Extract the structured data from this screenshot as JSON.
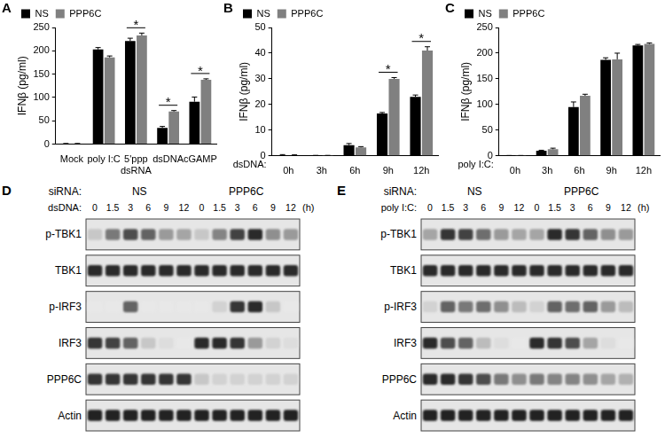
{
  "chart_data": [
    {
      "panel": "A",
      "type": "bar",
      "ylabel": "IFNβ (pg/ml)",
      "categories": [
        "Mock",
        "poly I:C",
        "5'ppp dsRNA",
        "dsDNA",
        "cGAMP"
      ],
      "series": [
        {
          "name": "NS",
          "color": "#000000",
          "values": [
            1,
            203,
            221,
            35,
            91
          ],
          "errors": [
            0.5,
            4,
            6,
            3,
            10
          ]
        },
        {
          "name": "PPP6C",
          "color": "#808080",
          "values": [
            1,
            186,
            233,
            70,
            138
          ],
          "errors": [
            0.5,
            3,
            5,
            2,
            2
          ]
        }
      ],
      "ylim": [
        0,
        250
      ],
      "yticks": [
        0,
        50,
        100,
        150,
        200,
        250
      ],
      "grid": false,
      "legend": "top-left",
      "annotations": [
        {
          "category": "5'ppp dsRNA",
          "text": "*"
        },
        {
          "category": "dsDNA",
          "text": "*"
        },
        {
          "category": "cGAMP",
          "text": "*"
        }
      ]
    },
    {
      "panel": "B",
      "type": "bar",
      "ylabel": "IFNβ (pg/ml)",
      "xlabel": "dsDNA:",
      "categories": [
        "0h",
        "3h",
        "6h",
        "9h",
        "12h"
      ],
      "series": [
        {
          "name": "NS",
          "color": "#000000",
          "values": [
            0.2,
            0.1,
            4.2,
            16.5,
            23
          ],
          "errors": [
            0.3,
            0.1,
            0.6,
            0.4,
            0.7
          ]
        },
        {
          "name": "PPP6C",
          "color": "#808080",
          "values": [
            0.2,
            0.1,
            3.3,
            30,
            41
          ],
          "errors": [
            0.2,
            0.1,
            0.3,
            0.5,
            1.5
          ]
        }
      ],
      "ylim": [
        0,
        50
      ],
      "yticks": [
        0,
        10,
        20,
        30,
        40,
        50
      ],
      "grid": false,
      "legend": "top-left",
      "annotations": [
        {
          "category": "9h",
          "text": "*"
        },
        {
          "category": "12h",
          "text": "*"
        }
      ]
    },
    {
      "panel": "C",
      "type": "bar",
      "ylabel": "IFNβ (pg/ml)",
      "xlabel": "poly I:C:",
      "categories": [
        "0h",
        "3h",
        "6h",
        "9h",
        "12h"
      ],
      "series": [
        {
          "name": "NS",
          "color": "#000000",
          "values": [
            0.5,
            10,
            95,
            187,
            215
          ],
          "errors": [
            0.3,
            1,
            10,
            4,
            2
          ]
        },
        {
          "name": "PPP6C",
          "color": "#808080",
          "values": [
            0.5,
            13,
            117,
            188,
            218
          ],
          "errors": [
            0.3,
            2,
            3,
            12,
            2
          ]
        }
      ],
      "ylim": [
        0,
        250
      ],
      "yticks": [
        0,
        50,
        100,
        150,
        200,
        250
      ],
      "grid": false,
      "legend": "top-left"
    }
  ],
  "blots": [
    {
      "panel": "D",
      "group_label": "siRNA:",
      "groups": [
        "NS",
        "PPP6C"
      ],
      "lane_label": "dsDNA:",
      "lanes": [
        "0",
        "1.5",
        "3",
        "6",
        "9",
        "12"
      ],
      "unit": "(h)",
      "rows": [
        {
          "name": "p-TBK1",
          "bands": [
            0.15,
            0.5,
            0.7,
            0.6,
            0.35,
            0.3,
            0.15,
            0.45,
            0.75,
            0.85,
            0.4,
            0.35
          ]
        },
        {
          "name": "TBK1",
          "bands": [
            0.85,
            0.85,
            0.85,
            0.85,
            0.85,
            0.85,
            0.85,
            0.85,
            0.85,
            0.85,
            0.85,
            0.85
          ]
        },
        {
          "name": "p-IRF3",
          "bands": [
            0,
            0,
            0.6,
            0,
            0,
            0,
            0,
            0.1,
            0.8,
            0.85,
            0.15,
            0
          ]
        },
        {
          "name": "IRF3",
          "bands": [
            0.8,
            0.75,
            0.6,
            0.15,
            0.05,
            0,
            0.85,
            0.85,
            0.8,
            0.35,
            0.1,
            0.05
          ]
        },
        {
          "name": "PPP6C",
          "bands": [
            0.8,
            0.8,
            0.8,
            0.8,
            0.8,
            0.8,
            0.15,
            0.1,
            0.1,
            0.1,
            0.1,
            0.1
          ]
        },
        {
          "name": "Actin",
          "bands": [
            0.9,
            0.9,
            0.9,
            0.9,
            0.9,
            0.9,
            0.9,
            0.9,
            0.9,
            0.9,
            0.9,
            0.9
          ]
        }
      ]
    },
    {
      "panel": "E",
      "group_label": "siRNA:",
      "groups": [
        "NS",
        "PPP6C"
      ],
      "lane_label": "poly I:C:",
      "lanes": [
        "0",
        "1.5",
        "3",
        "6",
        "9",
        "12"
      ],
      "unit": "(h)",
      "rows": [
        {
          "name": "p-TBK1",
          "bands": [
            0.3,
            0.8,
            0.75,
            0.55,
            0.35,
            0.3,
            0.3,
            0.85,
            0.8,
            0.6,
            0.4,
            0.35
          ]
        },
        {
          "name": "TBK1",
          "bands": [
            0.85,
            0.85,
            0.85,
            0.85,
            0.85,
            0.85,
            0.85,
            0.85,
            0.85,
            0.85,
            0.85,
            0.85
          ]
        },
        {
          "name": "p-IRF3",
          "bands": [
            0.1,
            0.6,
            0.5,
            0.55,
            0.4,
            0.2,
            0.1,
            0.6,
            0.55,
            0.6,
            0.35,
            0.2
          ]
        },
        {
          "name": "IRF3",
          "bands": [
            0.85,
            0.7,
            0.6,
            0.2,
            0.05,
            0,
            0.85,
            0.8,
            0.7,
            0.3,
            0.05,
            0
          ]
        },
        {
          "name": "PPP6C",
          "bands": [
            0.85,
            0.85,
            0.8,
            0.7,
            0.5,
            0.4,
            0.5,
            0.45,
            0.45,
            0.4,
            0.3,
            0.25
          ]
        },
        {
          "name": "Actin",
          "bands": [
            0.9,
            0.9,
            0.9,
            0.9,
            0.9,
            0.9,
            0.9,
            0.9,
            0.9,
            0.9,
            0.9,
            0.9
          ]
        }
      ]
    }
  ]
}
